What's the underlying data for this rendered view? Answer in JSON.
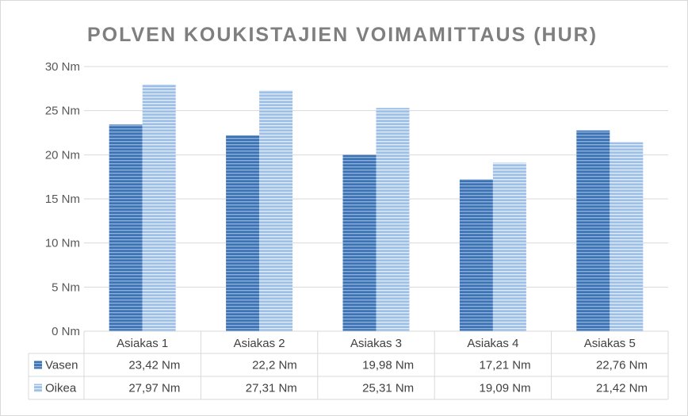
{
  "chart_data": {
    "type": "bar",
    "title": "POLVEN KOUKISTAJIEN VOIMAMITTAUS (HUR)",
    "categories": [
      "Asiakas 1",
      "Asiakas 2",
      "Asiakas 3",
      "Asiakas 4",
      "Asiakas 5"
    ],
    "series": [
      {
        "name": "Vasen",
        "values": [
          23.42,
          22.2,
          19.98,
          17.21,
          22.76
        ],
        "labels": [
          "23,42 Nm",
          "22,2 Nm",
          "19,98 Nm",
          "17,21 Nm",
          "22,76 Nm"
        ],
        "color": "#4a7fbf"
      },
      {
        "name": "Oikea",
        "values": [
          27.97,
          27.31,
          25.31,
          19.09,
          21.42
        ],
        "labels": [
          "27,97 Nm",
          "27,31 Nm",
          "25,31 Nm",
          "19,09 Nm",
          "21,42 Nm"
        ],
        "color": "#9dc0e6"
      }
    ],
    "ylim": [
      0,
      30
    ],
    "yticks": [
      0,
      5,
      10,
      15,
      20,
      25,
      30
    ],
    "ytick_labels": [
      "0 Nm",
      "5 Nm",
      "10 Nm",
      "15 Nm",
      "20 Nm",
      "25 Nm",
      "30 Nm"
    ],
    "grid": true,
    "legend": "data-table"
  }
}
